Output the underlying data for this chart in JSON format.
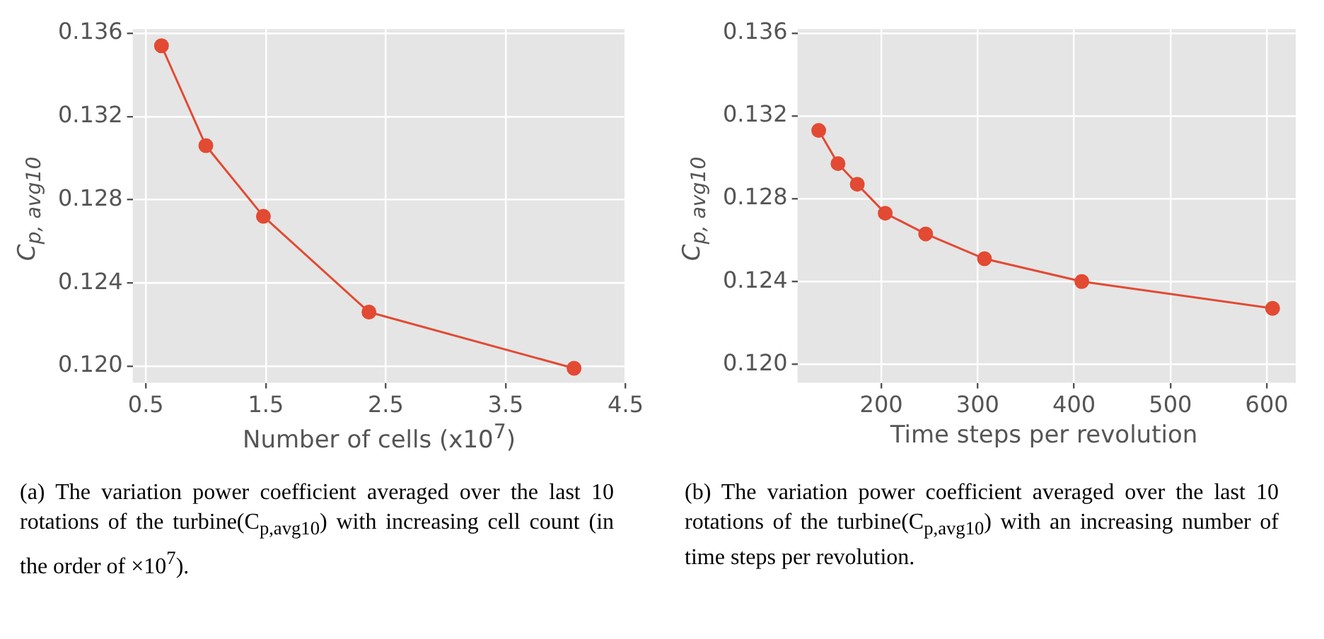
{
  "chart_data": [
    {
      "type": "line",
      "xlabel": "Number of cells (x10$^{7}$)",
      "ylabel": "C$_{p, avg10}$",
      "x": [
        0.63,
        1.0,
        1.48,
        2.36,
        4.07
      ],
      "series": [
        {
          "color": "#e24a33",
          "values": [
            0.1354,
            0.1306,
            0.1272,
            0.1226,
            0.1199
          ]
        }
      ],
      "xlim": [
        0.39,
        4.5
      ],
      "xticks": [
        0.5,
        1.5,
        2.5,
        3.5,
        4.5
      ],
      "ylim": [
        0.1192,
        0.1362
      ],
      "yticks": [
        {
          "value": 0.12,
          "label": "0.120"
        },
        0.124,
        0.128,
        0.132,
        0.136
      ],
      "grid": true,
      "marker": "circle",
      "annotations": [
        "(a) The variation power coefficient averaged over the last 10 rotations of the turbine(C$_{p,avg10}$) with increasing cell count (in the order of ×10$^{7}$)."
      ]
    },
    {
      "type": "line",
      "xlabel": "Time steps per revolution",
      "ylabel": "C$_{p, avg10}$",
      "x": [
        135,
        155,
        175,
        204,
        246,
        307,
        408,
        606
      ],
      "series": [
        {
          "color": "#e24a33",
          "values": [
            0.1313,
            0.1297,
            0.1287,
            0.1273,
            0.1263,
            0.1251,
            0.124,
            0.1227
          ]
        }
      ],
      "xlim": [
        113,
        630
      ],
      "xticks": [
        200,
        300,
        400,
        500,
        600
      ],
      "ylim": [
        0.1191,
        0.1362
      ],
      "yticks": [
        {
          "value": 0.12,
          "label": "0.120"
        },
        0.124,
        0.128,
        0.132,
        0.136
      ],
      "grid": true,
      "marker": "circle",
      "annotations": [
        "(b) The variation power coefficient averaged over the last 10 rotations of the turbine(C$_{p,avg10}$) with an increasing number of time steps per revolution."
      ]
    }
  ]
}
